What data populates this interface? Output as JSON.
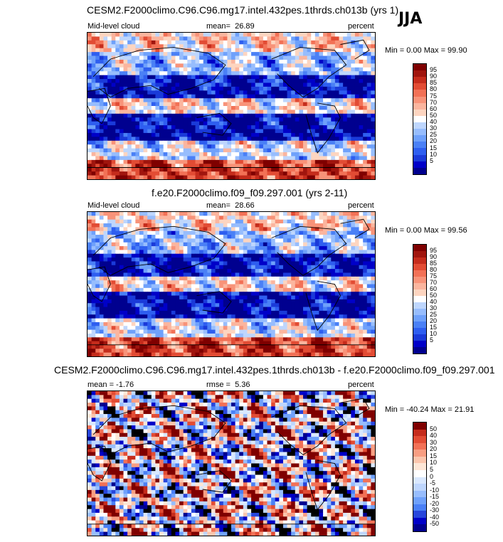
{
  "season": "JJA",
  "colors": {
    "abs": [
      "#00008f",
      "#0000c8",
      "#1a3ad9",
      "#2e5ef0",
      "#4a80f6",
      "#6fa1fb",
      "#97bdfd",
      "#bed6fd",
      "#ffffff",
      "#fdd5c0",
      "#fbb59e",
      "#f89379",
      "#f27156",
      "#e24c34",
      "#c52c1c",
      "#a0150e",
      "#7f0000"
    ],
    "diff": [
      "#00008f",
      "#0000c8",
      "#2746dc",
      "#4a80f6",
      "#6fa1fb",
      "#97bdfd",
      "#bed6fd",
      "#d9e8fe",
      "#ffffff",
      "#fde6d6",
      "#fbc6ad",
      "#f89e82",
      "#f27156",
      "#e24c34",
      "#c52c1c",
      "#7f0000"
    ]
  },
  "chart_data": [
    {
      "type": "heatmap",
      "title": "CESM2.F2000climo.C96.C96.mg17.intel.432pes.1thrds.ch013b (yrs 1)",
      "left_label": "Mid-level cloud",
      "stat_label": "mean=",
      "stat_value": "26.89",
      "units": "percent",
      "min_max": "Min =  0.00 Max =  99.90",
      "levels": [
        "5",
        "10",
        "15",
        "20",
        "25",
        "30",
        "40",
        "50",
        "60",
        "70",
        "75",
        "80",
        "85",
        "90",
        "95"
      ]
    },
    {
      "type": "heatmap",
      "title": "f.e20.F2000climo.f09_f09.297.001 (yrs 2-11)",
      "left_label": "Mid-level cloud",
      "stat_label": "mean=",
      "stat_value": "28.66",
      "units": "percent",
      "min_max": "Min =  0.00 Max =  99.56",
      "levels": [
        "5",
        "10",
        "15",
        "20",
        "25",
        "30",
        "40",
        "50",
        "60",
        "70",
        "75",
        "80",
        "85",
        "90",
        "95"
      ]
    },
    {
      "type": "heatmap",
      "title": "CESM2.F2000climo.C96.C96.mg17.intel.432pes.1thrds.ch013b - f.e20.F2000climo.f09_f09.297.001",
      "left_label": "mean =  -1.76",
      "stat_label": "rmse =",
      "stat_value": "5.36",
      "units": "percent",
      "min_max": "Min = -40.24 Max =  21.91",
      "levels": [
        "-50",
        "-40",
        "-30",
        "-20",
        "-15",
        "-10",
        "-5",
        "0",
        "5",
        "10",
        "15",
        "20",
        "30",
        "40",
        "50"
      ]
    }
  ]
}
